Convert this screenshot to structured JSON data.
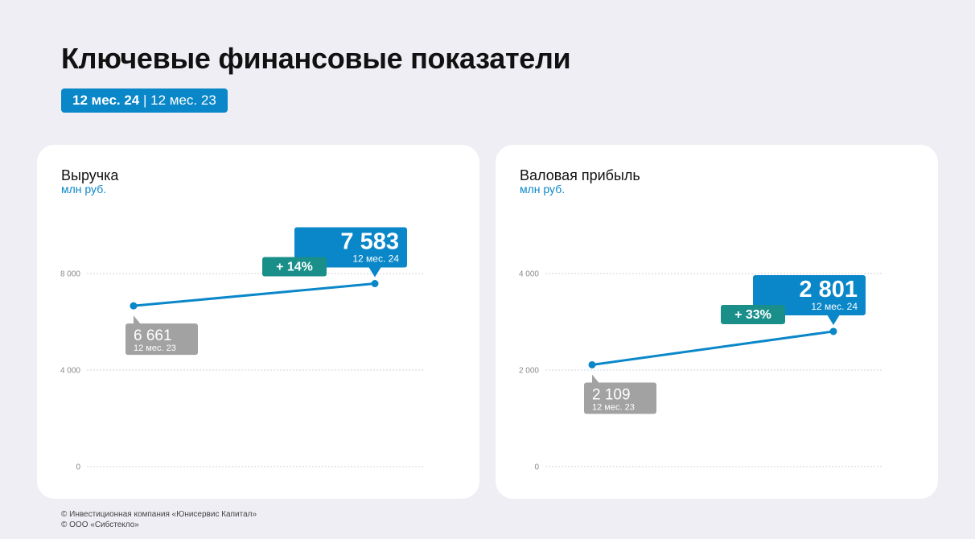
{
  "page": {
    "title": "Ключевые финансовые показатели",
    "period_current": "12 мес. 24",
    "period_separator": "|",
    "period_previous": "12 мес. 23"
  },
  "colors": {
    "accent": "#0a87c9",
    "growth": "#1a8f8a",
    "previous": "#a2a2a2",
    "grid": "#cfd3d9"
  },
  "chart_data": [
    {
      "type": "line",
      "title": "Выручка",
      "unit": "млн руб.",
      "x": [
        "12 мес. 23",
        "12 мес. 24"
      ],
      "values": [
        6661,
        7583
      ],
      "value_labels": [
        "6 661",
        "7 583"
      ],
      "ylim": [
        0,
        8000
      ],
      "yticks": [
        0,
        4000,
        8000
      ],
      "ytick_labels": [
        "0",
        "4 000",
        "8 000"
      ],
      "change_label": "+ 14%",
      "grid": true
    },
    {
      "type": "line",
      "title": "Валовая прибыль",
      "unit": "млн руб.",
      "x": [
        "12 мес. 23",
        "12 мес. 24"
      ],
      "values": [
        2109,
        2801
      ],
      "value_labels": [
        "2 109",
        "2 801"
      ],
      "ylim": [
        0,
        4000
      ],
      "yticks": [
        0,
        2000,
        4000
      ],
      "ytick_labels": [
        "0",
        "2 000",
        "4 000"
      ],
      "change_label": "+ 33%",
      "grid": true
    }
  ],
  "footer": {
    "line1": "© Инвестиционная компания «Юнисервис Капитал»",
    "line2": "© ООО «Сибстекло»"
  }
}
